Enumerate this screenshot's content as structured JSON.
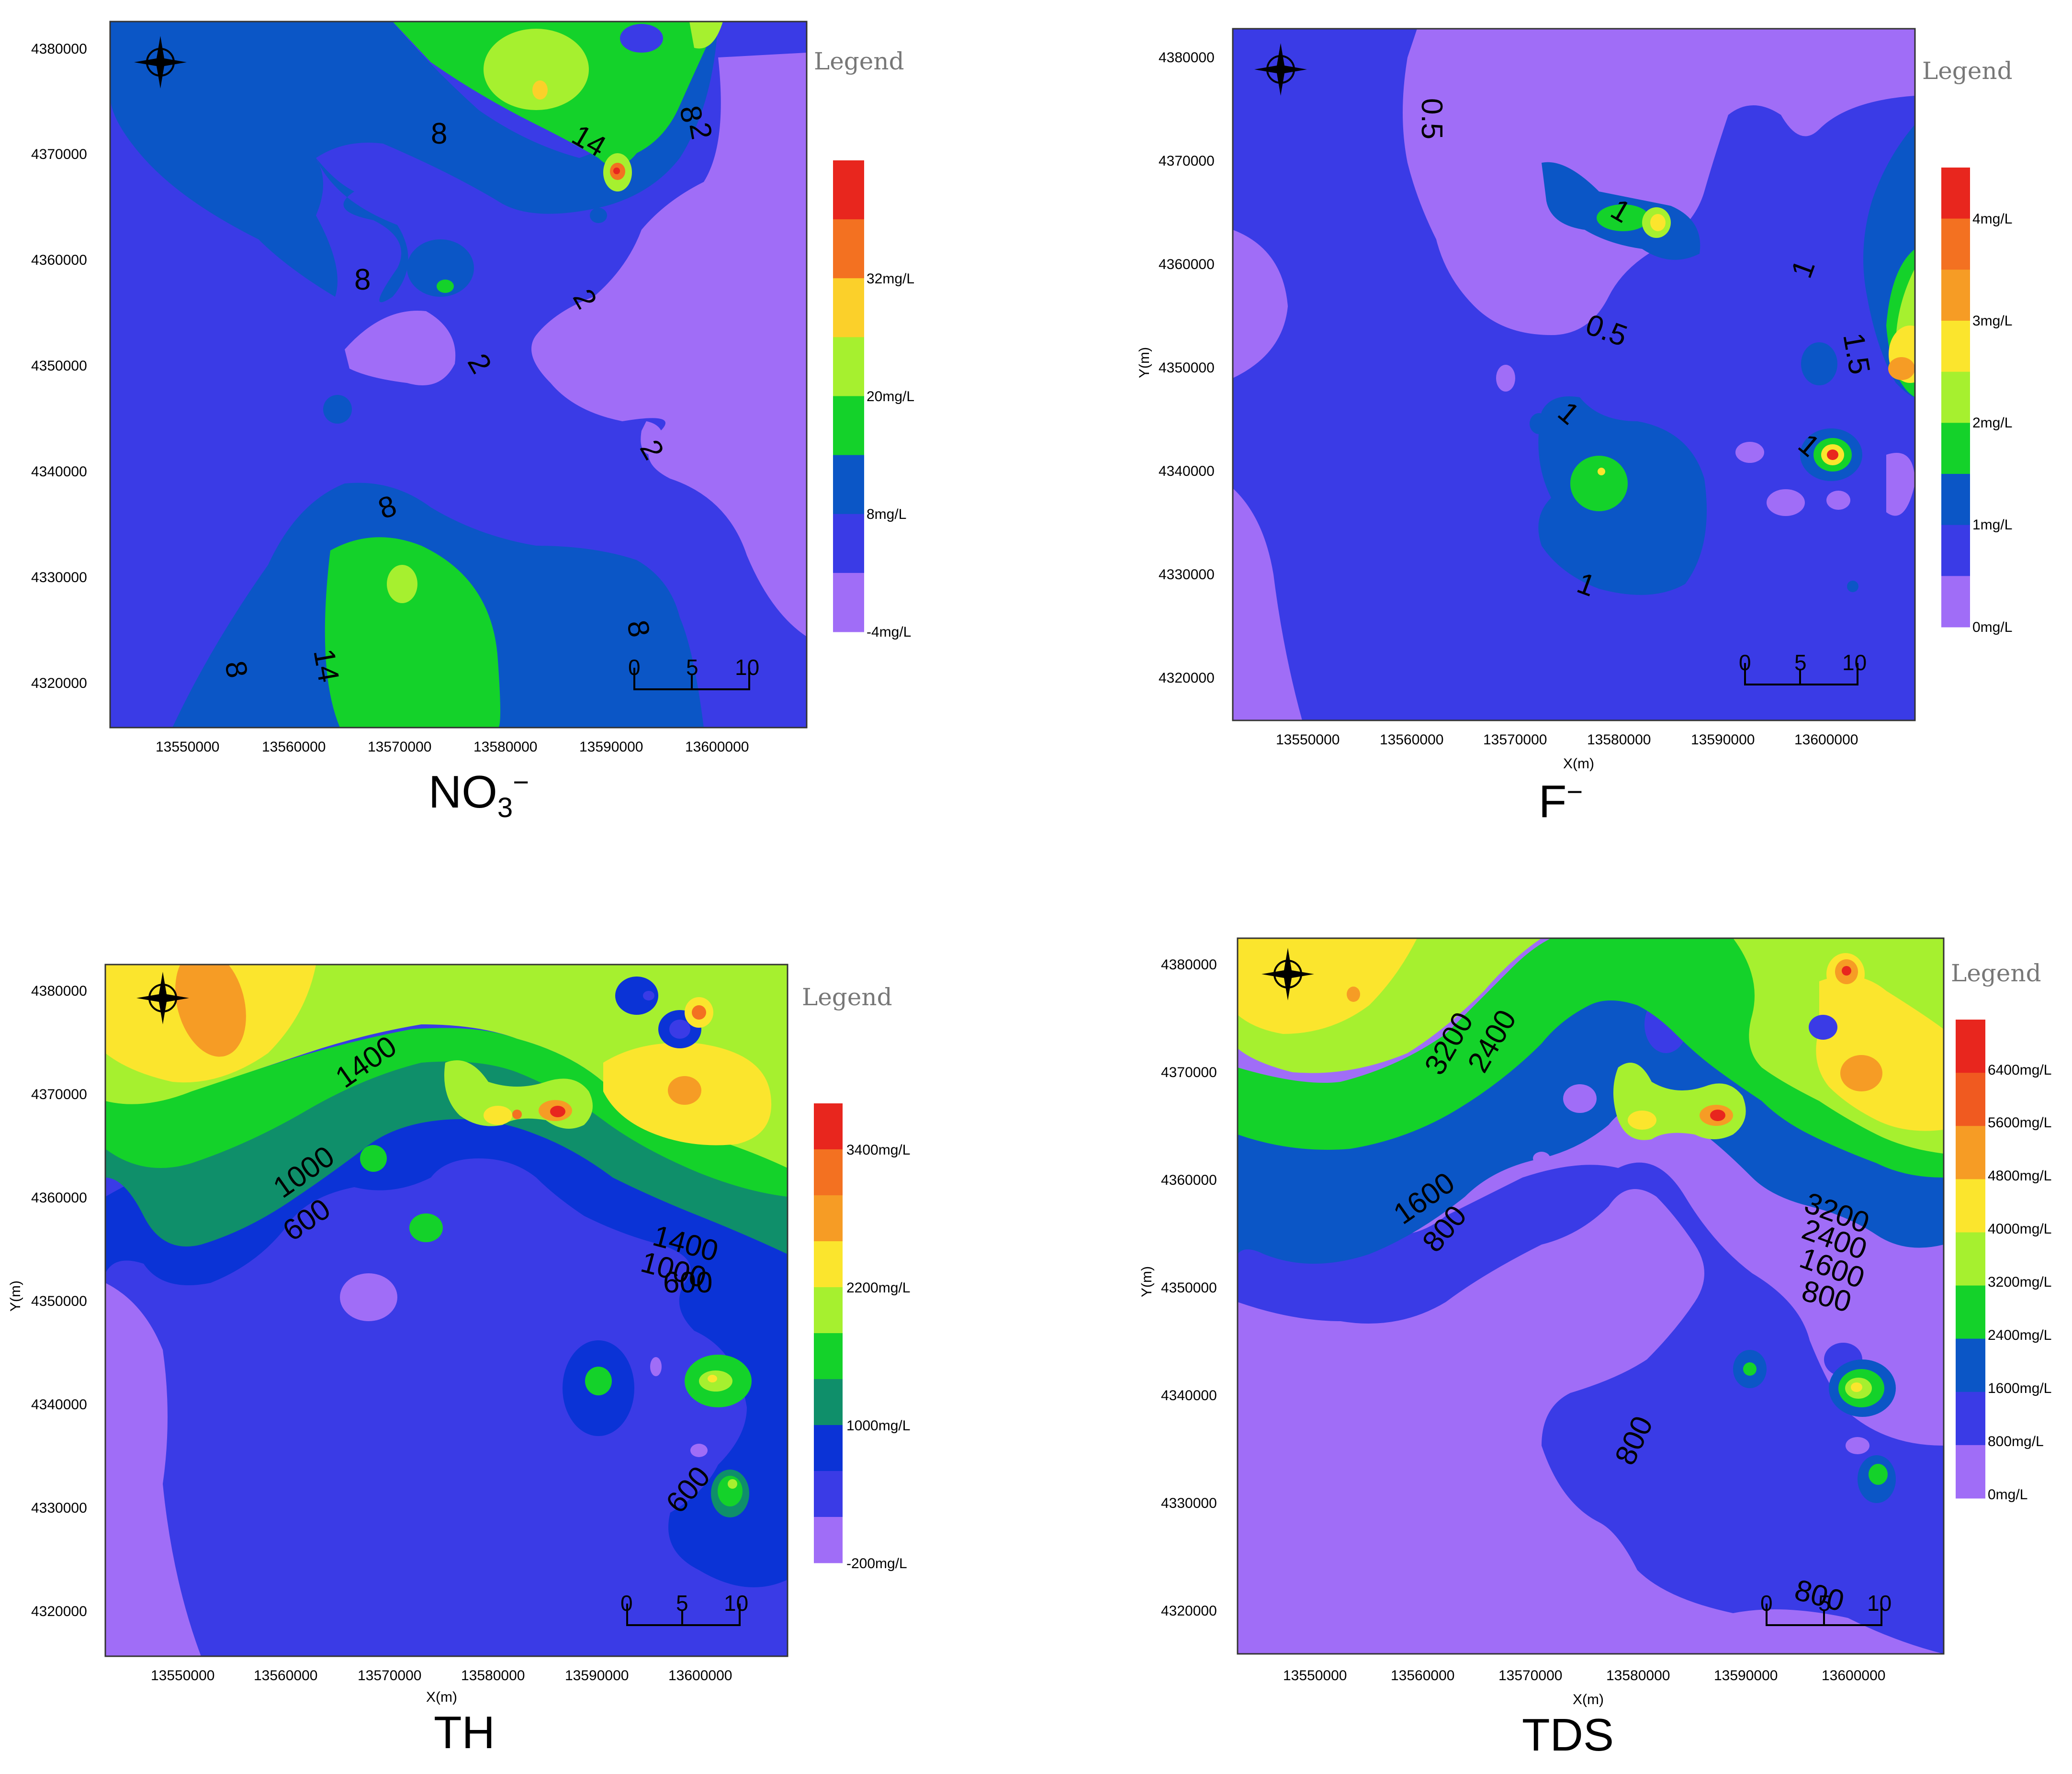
{
  "panels": [
    {
      "id": "no3",
      "caption": {
        "main": "NO",
        "sub": "3",
        "sup": "−"
      },
      "legend_title": "Legend",
      "legend_labels": [
        "32mg/L",
        "20mg/L",
        "8mg/L",
        "-4mg/L"
      ],
      "legend_colors": [
        "#e8261e",
        "#f37121",
        "#fbd02a",
        "#a6f02f",
        "#14d22a",
        "#0b56c6",
        "#3a3be6",
        "#a06df7"
      ],
      "y_ticks": [
        "4380000",
        "4370000",
        "4360000",
        "4350000",
        "4340000",
        "4330000",
        "4320000"
      ],
      "x_ticks": [
        "13550000",
        "13560000",
        "13570000",
        "13580000",
        "13590000",
        "13600000"
      ],
      "x_title": "",
      "y_title": "",
      "contour_labels": [
        "8",
        "14",
        "8",
        "2",
        "8",
        "2",
        "2",
        "2",
        "8",
        "14",
        "8",
        "8"
      ],
      "scale_labels": [
        "0",
        "5",
        "10"
      ]
    },
    {
      "id": "f",
      "caption": {
        "main": "F",
        "sub": "",
        "sup": "−"
      },
      "legend_title": "Legend",
      "legend_labels": [
        "4mg/L",
        "3mg/L",
        "2mg/L",
        "1mg/L",
        "0mg/L"
      ],
      "legend_colors": [
        "#e8261e",
        "#f37121",
        "#f69c25",
        "#fbe52d",
        "#a6f02f",
        "#14d22a",
        "#0b56c6",
        "#3a3be6",
        "#a06df7"
      ],
      "y_ticks": [
        "4380000",
        "4370000",
        "4360000",
        "4350000",
        "4340000",
        "4330000",
        "4320000"
      ],
      "x_ticks": [
        "13550000",
        "13560000",
        "13570000",
        "13580000",
        "13590000",
        "13600000"
      ],
      "x_title": "X(m)",
      "y_title": "Y(m)",
      "contour_labels": [
        "0.5",
        "1",
        "0.5",
        "1",
        "1.5",
        "1",
        "1",
        "1"
      ],
      "scale_labels": [
        "0",
        "5",
        "10"
      ]
    },
    {
      "id": "th",
      "caption": {
        "main": "TH",
        "sub": "",
        "sup": ""
      },
      "legend_title": "Legend",
      "legend_labels": [
        "3400mg/L",
        "2200mg/L",
        "1000mg/L",
        "-200mg/L"
      ],
      "legend_colors": [
        "#e8261e",
        "#f37121",
        "#f69c25",
        "#fbe52d",
        "#a6f02f",
        "#14d22a",
        "#0f8f6a",
        "#0b33d6",
        "#3a3be6",
        "#a06df7"
      ],
      "y_ticks": [
        "4380000",
        "4370000",
        "4360000",
        "4350000",
        "4340000",
        "4330000",
        "4320000"
      ],
      "x_ticks": [
        "13550000",
        "13560000",
        "13570000",
        "13580000",
        "13590000",
        "13600000"
      ],
      "x_title": "X(m)",
      "y_title": "Y(m)",
      "contour_labels": [
        "1400",
        "1000",
        "600",
        "1400",
        "1000",
        "600",
        "600"
      ],
      "scale_labels": [
        "0",
        "5",
        "10"
      ]
    },
    {
      "id": "tds",
      "caption": {
        "main": "TDS",
        "sub": "",
        "sup": ""
      },
      "legend_title": "Legend",
      "legend_labels": [
        "6400mg/L",
        "5600mg/L",
        "4800mg/L",
        "4000mg/L",
        "3200mg/L",
        "2400mg/L",
        "1600mg/L",
        "800mg/L",
        "0mg/L"
      ],
      "legend_colors": [
        "#e8261e",
        "#f05a20",
        "#f69c25",
        "#fbe52d",
        "#a6f02f",
        "#14d22a",
        "#0b56c6",
        "#3a3be6",
        "#a06df7"
      ],
      "y_ticks": [
        "4380000",
        "4370000",
        "4360000",
        "4350000",
        "4340000",
        "4330000",
        "4320000"
      ],
      "x_ticks": [
        "13550000",
        "13560000",
        "13570000",
        "13580000",
        "13590000",
        "13600000"
      ],
      "x_title": "X(m)",
      "y_title": "Y(m)",
      "contour_labels": [
        "3200",
        "2400",
        "1600",
        "800",
        "3200",
        "2400",
        "1600",
        "800",
        "800",
        "800"
      ],
      "scale_labels": [
        "0",
        "5",
        "10"
      ]
    }
  ],
  "compass_letters": [
    "N",
    "S",
    "W",
    "E"
  ],
  "colors": {
    "violet": "#a06df7",
    "blue": "#3a3be6",
    "dark_blue": "#0b56c6",
    "teal": "#0f8f6a",
    "green": "#14d22a",
    "light_green": "#a6f02f",
    "yellow": "#fbe52d",
    "orange": "#f69c25",
    "dark_orange": "#f37121",
    "red": "#e8261e"
  }
}
